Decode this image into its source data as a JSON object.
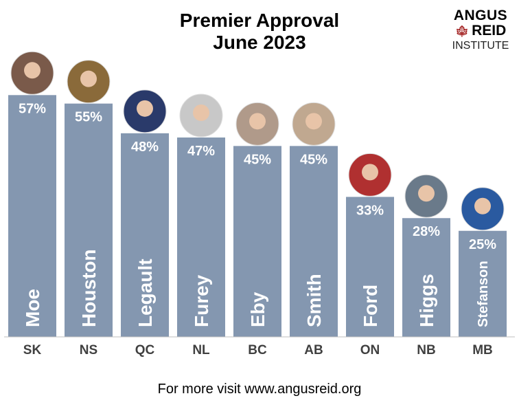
{
  "chart_data": {
    "type": "bar",
    "title": [
      "Premier Approval",
      "June 2023"
    ],
    "categories": [
      "SK",
      "NS",
      "QC",
      "NL",
      "BC",
      "AB",
      "ON",
      "NB",
      "MB"
    ],
    "names": [
      "Moe",
      "Houston",
      "Legault",
      "Furey",
      "Eby",
      "Smith",
      "Ford",
      "Higgs",
      "Stefanson"
    ],
    "values": [
      57,
      55,
      48,
      47,
      45,
      45,
      33,
      28,
      25
    ],
    "value_suffix": "%",
    "ylim": [
      0,
      60
    ],
    "grid": false,
    "bar_color": "#8497B0",
    "xlabel": "",
    "ylabel": ""
  },
  "logo": {
    "line1": "ANGUS",
    "line2": "REID",
    "line3": "INSTITUTE",
    "leaf_color": "#a11d1d"
  },
  "footer": "For more visit www.angusreid.org"
}
